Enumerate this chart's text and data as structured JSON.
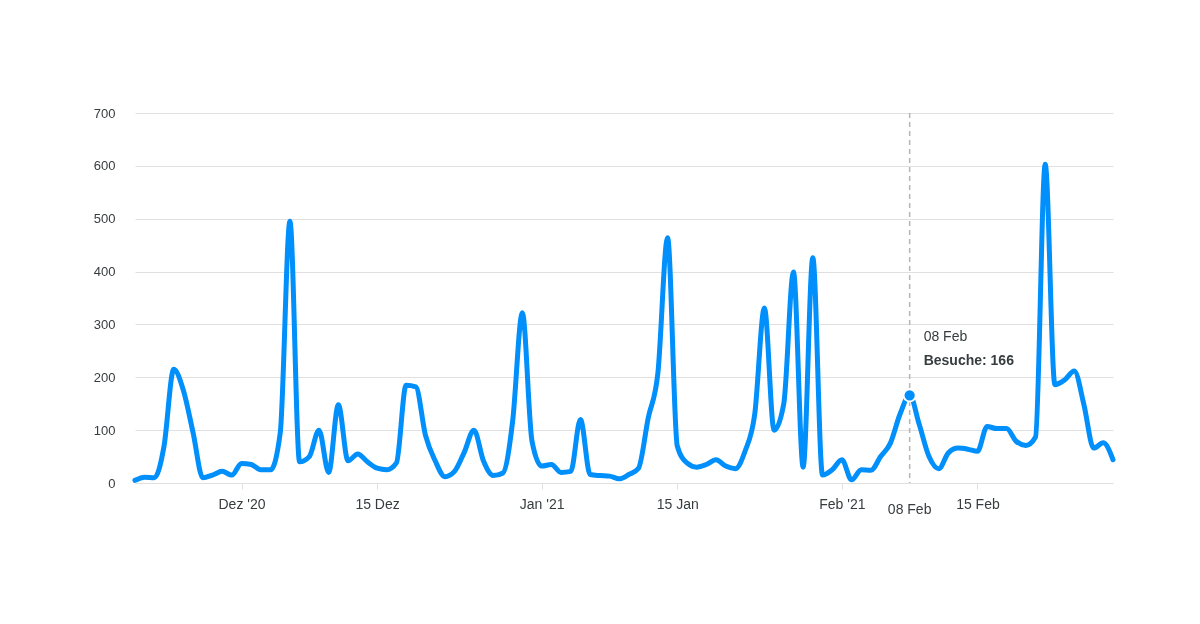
{
  "chart_data": {
    "type": "line",
    "x": [
      "2020-11-20",
      "2020-11-21",
      "2020-11-22",
      "2020-11-23",
      "2020-11-24",
      "2020-11-25",
      "2020-11-26",
      "2020-11-27",
      "2020-11-28",
      "2020-11-29",
      "2020-11-30",
      "2020-12-01",
      "2020-12-02",
      "2020-12-03",
      "2020-12-04",
      "2020-12-05",
      "2020-12-06",
      "2020-12-07",
      "2020-12-08",
      "2020-12-09",
      "2020-12-10",
      "2020-12-11",
      "2020-12-12",
      "2020-12-13",
      "2020-12-14",
      "2020-12-15",
      "2020-12-16",
      "2020-12-17",
      "2020-12-18",
      "2020-12-19",
      "2020-12-20",
      "2020-12-21",
      "2020-12-22",
      "2020-12-23",
      "2020-12-24",
      "2020-12-25",
      "2020-12-26",
      "2020-12-27",
      "2020-12-28",
      "2020-12-29",
      "2020-12-30",
      "2020-12-31",
      "2021-01-01",
      "2021-01-02",
      "2021-01-03",
      "2021-01-04",
      "2021-01-05",
      "2021-01-06",
      "2021-01-07",
      "2021-01-08",
      "2021-01-09",
      "2021-01-10",
      "2021-01-11",
      "2021-01-12",
      "2021-01-13",
      "2021-01-14",
      "2021-01-15",
      "2021-01-16",
      "2021-01-17",
      "2021-01-18",
      "2021-01-19",
      "2021-01-20",
      "2021-01-21",
      "2021-01-22",
      "2021-01-23",
      "2021-01-24",
      "2021-01-25",
      "2021-01-26",
      "2021-01-27",
      "2021-01-28",
      "2021-01-29",
      "2021-01-30",
      "2021-01-31",
      "2021-02-01",
      "2021-02-02",
      "2021-02-03",
      "2021-02-04",
      "2021-02-05",
      "2021-02-06",
      "2021-02-07",
      "2021-02-08",
      "2021-02-09",
      "2021-02-10",
      "2021-02-11",
      "2021-02-12",
      "2021-02-13",
      "2021-02-14",
      "2021-02-15",
      "2021-02-16",
      "2021-02-17",
      "2021-02-18",
      "2021-02-19",
      "2021-02-20",
      "2021-02-21",
      "2021-02-22",
      "2021-02-23",
      "2021-02-24",
      "2021-02-25",
      "2021-02-26",
      "2021-02-27",
      "2021-02-28",
      "2021-03-01"
    ],
    "series": [
      {
        "color": "#008ffb",
        "values": [
          5,
          11,
          10,
          70,
          215,
          175,
          95,
          10,
          15,
          22,
          15,
          37,
          35,
          25,
          25,
          95,
          495,
          40,
          50,
          100,
          20,
          148,
          42,
          55,
          40,
          28,
          25,
          38,
          185,
          182,
          90,
          42,
          12,
          22,
          58,
          100,
          41,
          14,
          19,
          117,
          322,
          79,
          32,
          35,
          20,
          22,
          120,
          16,
          14,
          13,
          8,
          16,
          28,
          123,
          208,
          464,
          70,
          38,
          30,
          35,
          44,
          32,
          27,
          60,
          130,
          331,
          100,
          150,
          399,
          30,
          426,
          15,
          25,
          44,
          6,
          25,
          24,
          50,
          75,
          130,
          166,
          110,
          50,
          27,
          57,
          66,
          64,
          60,
          107,
          103,
          103,
          79,
          71,
          87,
          603,
          186,
          195,
          212,
          148,
          66,
          76,
          44
        ]
      }
    ],
    "xlim": [
      "2020-11-20",
      "2021-03-01"
    ],
    "xticks": [
      {
        "value": "2020-12-01",
        "label": "Dez '20"
      },
      {
        "value": "2020-12-15",
        "label": "15 Dez"
      },
      {
        "value": "2021-01-01",
        "label": "Jan '21"
      },
      {
        "value": "2021-01-15",
        "label": "15 Jan"
      },
      {
        "value": "2021-02-01",
        "label": "Feb '21"
      },
      {
        "value": "2021-02-15",
        "label": "15 Feb"
      }
    ],
    "ylim": [
      0,
      700
    ],
    "yticks": [
      0,
      100,
      200,
      300,
      400,
      500,
      600,
      700
    ],
    "grid": "y",
    "line_style": "solid",
    "ref_lines": [
      {
        "axis": "x",
        "value": "2021-02-08",
        "label": "08 Feb",
        "line_style": "dashed",
        "color": "#b6b6b6"
      }
    ],
    "annotations": [
      "08 Feb",
      {
        "text": "Besuche: 166",
        "x": "2021-02-08",
        "y": 166
      }
    ]
  }
}
